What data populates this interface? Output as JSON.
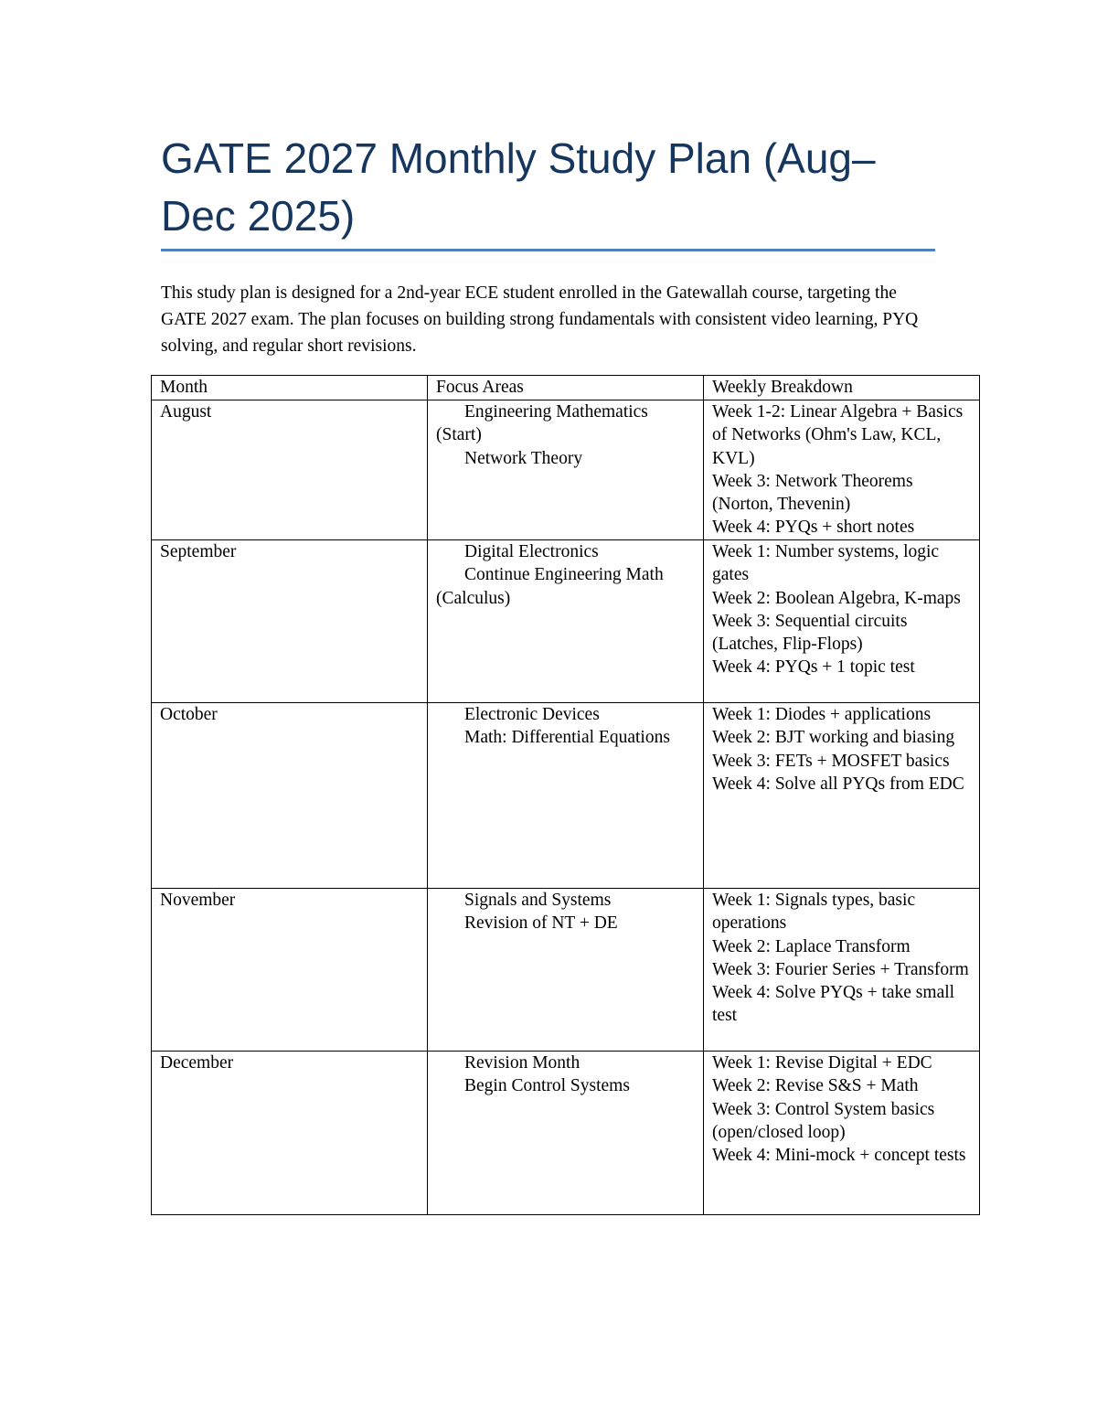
{
  "title": "GATE 2027 Monthly Study Plan (Aug–Dec 2025)",
  "intro": "This study plan is designed for a 2nd-year ECE student enrolled in the Gatewallah course, targeting the GATE 2027 exam. The plan focuses on building strong fundamentals with consistent video learning, PYQ solving, and regular short revisions.",
  "table": {
    "headers": [
      "Month",
      "Focus Areas",
      "Weekly Breakdown"
    ],
    "rows": [
      {
        "month": "August",
        "focus": [
          "Engineering Mathematics (Start)",
          "Network Theory"
        ],
        "weeks": [
          "Week 1-2: Linear Algebra + Basics of Networks (Ohm's Law, KCL, KVL)",
          "Week 3: Network Theorems (Norton, Thevenin)",
          "Week 4: PYQs + short notes"
        ]
      },
      {
        "month": "September",
        "focus": [
          "Digital Electronics",
          "Continue Engineering Math (Calculus)"
        ],
        "weeks": [
          "Week 1: Number systems, logic gates",
          "Week 2: Boolean Algebra, K-maps",
          "Week 3: Sequential circuits (Latches, Flip-Flops)",
          "Week 4: PYQs + 1 topic test"
        ]
      },
      {
        "month": "October",
        "focus": [
          "Electronic Devices",
          "Math: Differential Equations"
        ],
        "weeks": [
          "Week 1: Diodes + applications",
          "Week 2: BJT working and biasing",
          "Week 3: FETs + MOSFET basics",
          "Week 4: Solve all PYQs from EDC"
        ]
      },
      {
        "month": "November",
        "focus": [
          "Signals and Systems",
          "Revision of NT + DE"
        ],
        "weeks": [
          "Week 1: Signals types, basic operations",
          "Week 2: Laplace Transform",
          "Week 3: Fourier Series + Transform",
          "Week 4: Solve PYQs + take small test"
        ]
      },
      {
        "month": "December",
        "focus": [
          "Revision Month",
          "Begin Control Systems"
        ],
        "weeks": [
          "Week 1: Revise Digital + EDC",
          "Week 2: Revise S&S + Math",
          "Week 3: Control System basics (open/closed loop)",
          "Week 4: Mini-mock + concept tests"
        ]
      }
    ]
  }
}
